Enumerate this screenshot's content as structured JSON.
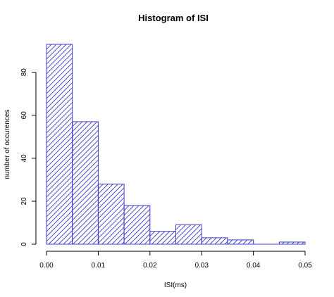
{
  "chart_data": {
    "type": "bar",
    "title": "Histogram of ISI",
    "xlabel": "ISI(ms)",
    "ylabel": "number of occurences",
    "bins": [
      {
        "x0": 0.0,
        "x1": 0.005,
        "count": 93
      },
      {
        "x0": 0.005,
        "x1": 0.01,
        "count": 57
      },
      {
        "x0": 0.01,
        "x1": 0.015,
        "count": 28
      },
      {
        "x0": 0.015,
        "x1": 0.02,
        "count": 18
      },
      {
        "x0": 0.02,
        "x1": 0.025,
        "count": 6
      },
      {
        "x0": 0.025,
        "x1": 0.03,
        "count": 9
      },
      {
        "x0": 0.03,
        "x1": 0.035,
        "count": 3
      },
      {
        "x0": 0.035,
        "x1": 0.04,
        "count": 2
      },
      {
        "x0": 0.04,
        "x1": 0.045,
        "count": 0
      },
      {
        "x0": 0.045,
        "x1": 0.05,
        "count": 1
      }
    ],
    "xlim": [
      0,
      0.05
    ],
    "ylim": [
      0,
      93
    ],
    "x_ticks": [
      0.0,
      0.01,
      0.02,
      0.03,
      0.04,
      0.05
    ],
    "x_tick_labels": [
      "0.00",
      "0.01",
      "0.02",
      "0.03",
      "0.04",
      "0.05"
    ],
    "y_ticks": [
      0,
      20,
      40,
      60,
      80
    ],
    "y_tick_labels": [
      "0",
      "20",
      "40",
      "60",
      "80"
    ],
    "grid": false,
    "fill": "diagonal-hatch",
    "bar_color": "#3b3bd0"
  }
}
